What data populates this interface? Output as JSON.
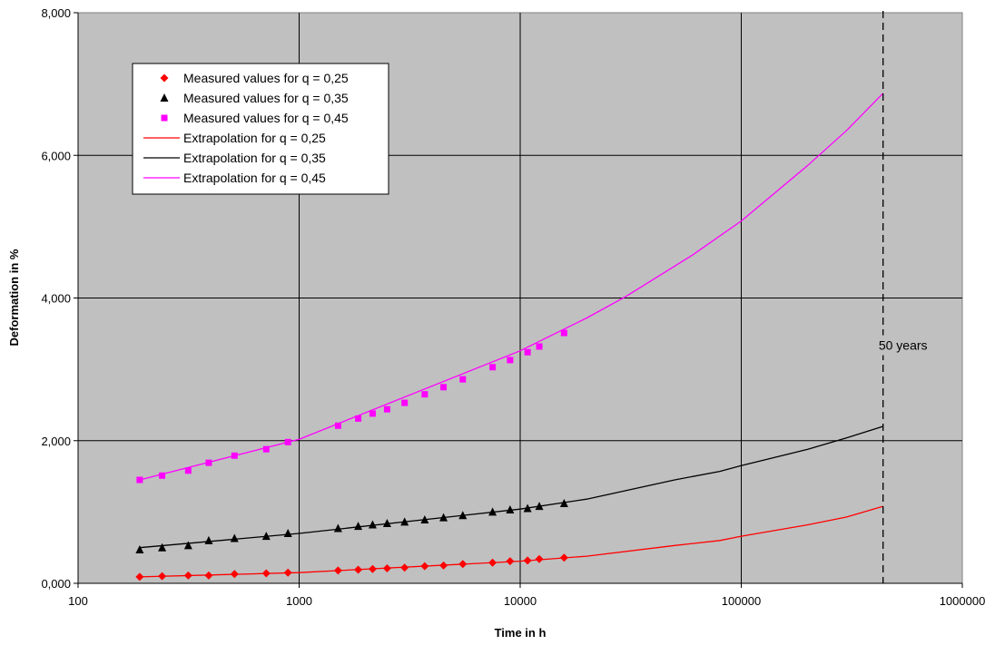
{
  "chart_data": {
    "type": "scatter",
    "title": "",
    "xlabel": "Time in h",
    "ylabel": "Deformation in %",
    "xscale": "log",
    "xlim": [
      100,
      1000000
    ],
    "ylim": [
      0,
      8
    ],
    "x_ticks": [
      100,
      1000,
      10000,
      100000,
      1000000
    ],
    "x_tick_labels": [
      "100",
      "1000",
      "10000",
      "100000",
      "1000000"
    ],
    "y_ticks": [
      0,
      2,
      4,
      6,
      8
    ],
    "y_tick_labels": [
      "0,000",
      "2,000",
      "4,000",
      "6,000",
      "8,000"
    ],
    "grid": true,
    "plot_background": "#c0c0c0",
    "legend_position": "top-left",
    "series": [
      {
        "name": "Measured values for q = 0,25",
        "kind": "marker",
        "marker": "diamond",
        "color": "#ff0000",
        "x": [
          190,
          240,
          315,
          390,
          510,
          710,
          890,
          1500,
          1850,
          2150,
          2500,
          3000,
          3700,
          4500,
          5500,
          7500,
          9000,
          10800,
          12200,
          15800
        ],
        "y": [
          0.09,
          0.1,
          0.11,
          0.11,
          0.13,
          0.14,
          0.15,
          0.18,
          0.19,
          0.2,
          0.21,
          0.22,
          0.24,
          0.25,
          0.27,
          0.29,
          0.31,
          0.32,
          0.34,
          0.36
        ]
      },
      {
        "name": "Measured values for q = 0,35",
        "kind": "marker",
        "marker": "triangle",
        "color": "#000000",
        "x": [
          190,
          240,
          315,
          390,
          510,
          710,
          890,
          1500,
          1850,
          2150,
          2500,
          3000,
          3700,
          4500,
          5500,
          7500,
          9000,
          10800,
          12200,
          15800
        ],
        "y": [
          0.47,
          0.5,
          0.53,
          0.6,
          0.63,
          0.66,
          0.7,
          0.77,
          0.8,
          0.82,
          0.84,
          0.86,
          0.89,
          0.92,
          0.95,
          1.0,
          1.03,
          1.05,
          1.08,
          1.12
        ]
      },
      {
        "name": "Measured values for q = 0,45",
        "kind": "marker",
        "marker": "square",
        "color": "#ff00ff",
        "x": [
          190,
          240,
          315,
          390,
          510,
          710,
          890,
          1500,
          1850,
          2150,
          2500,
          3000,
          3700,
          4500,
          5500,
          7500,
          9000,
          10800,
          12200,
          15800
        ],
        "y": [
          1.45,
          1.51,
          1.58,
          1.69,
          1.79,
          1.88,
          1.98,
          2.21,
          2.31,
          2.38,
          2.44,
          2.53,
          2.65,
          2.75,
          2.86,
          3.03,
          3.13,
          3.24,
          3.32,
          3.51
        ]
      },
      {
        "name": "Extrapolation for q = 0,25",
        "kind": "line",
        "color": "#ff0000",
        "x": [
          190,
          1000,
          10000,
          20000,
          50000,
          80000,
          100000,
          200000,
          300000,
          438000
        ],
        "y": [
          0.09,
          0.15,
          0.31,
          0.38,
          0.53,
          0.6,
          0.66,
          0.82,
          0.93,
          1.08
        ]
      },
      {
        "name": "Extrapolation for q = 0,35",
        "kind": "line",
        "color": "#000000",
        "x": [
          190,
          1000,
          10000,
          20000,
          50000,
          80000,
          100000,
          200000,
          300000,
          438000
        ],
        "y": [
          0.5,
          0.7,
          1.04,
          1.18,
          1.45,
          1.57,
          1.65,
          1.88,
          2.04,
          2.2
        ]
      },
      {
        "name": "Extrapolation for q = 0,45",
        "kind": "line",
        "color": "#ff00ff",
        "x": [
          190,
          1000,
          10000,
          20000,
          30000,
          60000,
          100000,
          200000,
          300000,
          438000
        ],
        "y": [
          1.45,
          2.02,
          3.26,
          3.72,
          4.02,
          4.6,
          5.08,
          5.86,
          6.35,
          6.87
        ]
      }
    ],
    "annotations": [
      {
        "text": "50 years",
        "x": 438000,
        "y": 3.3,
        "line": "vertical-dashed"
      }
    ]
  }
}
